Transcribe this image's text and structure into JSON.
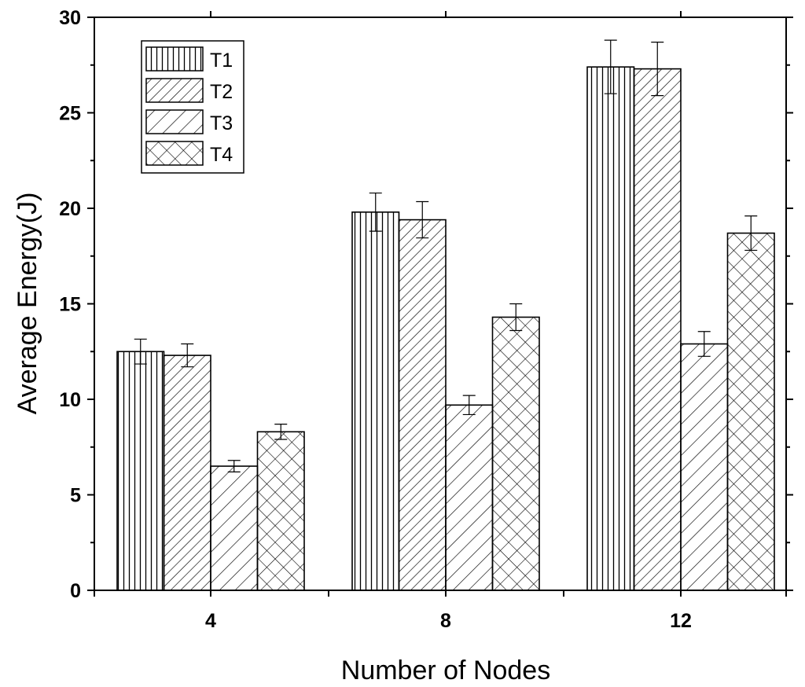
{
  "chart_data": {
    "type": "bar",
    "title": "",
    "xlabel": "Number of Nodes",
    "ylabel": "Average Energy(J)",
    "categories": [
      "4",
      "8",
      "12"
    ],
    "ylim": [
      0,
      30
    ],
    "yticks": [
      "0",
      "5",
      "10",
      "15",
      "20",
      "25",
      "30"
    ],
    "grid": false,
    "legend_position": "top-left",
    "series": [
      {
        "name": "T1",
        "values": [
          12.5,
          19.8,
          27.4
        ],
        "errors": [
          0.65,
          1.0,
          1.4
        ],
        "pattern": "vertical-lines"
      },
      {
        "name": "T2",
        "values": [
          12.3,
          19.4,
          27.3
        ],
        "errors": [
          0.6,
          0.95,
          1.4
        ],
        "pattern": "dense-diagonal"
      },
      {
        "name": "T3",
        "values": [
          6.5,
          9.7,
          12.9
        ],
        "errors": [
          0.3,
          0.5,
          0.65
        ],
        "pattern": "sparse-diagonal"
      },
      {
        "name": "T4",
        "values": [
          8.3,
          14.3,
          18.7
        ],
        "errors": [
          0.4,
          0.7,
          0.9
        ],
        "pattern": "crosshatch"
      }
    ]
  }
}
